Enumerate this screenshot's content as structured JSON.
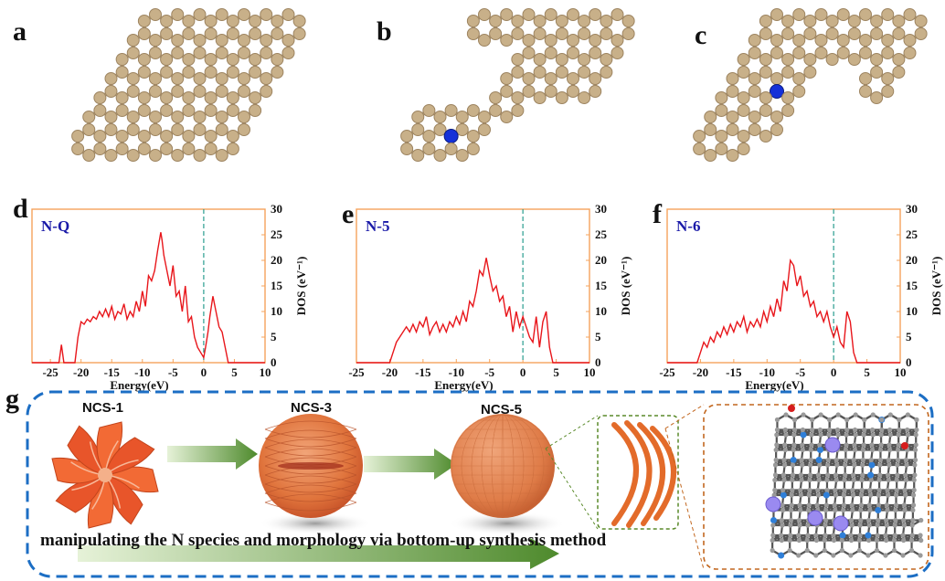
{
  "panels": {
    "a": "a",
    "b": "b",
    "c": "c",
    "d": "d",
    "e": "e",
    "f": "f",
    "g": "g"
  },
  "colors": {
    "carbon_atom": "#c8b089",
    "nitrogen_atom": "#1530d8",
    "dos_line": "#e8161b",
    "axes_frame": "#f4a35c",
    "fermi_line": "#2a9d8f",
    "dash_border": "#1c6ec4",
    "arrow_green": "#4e8a2c",
    "sphere_orange": "#e37a3b"
  },
  "chart_data": [
    {
      "type": "line",
      "title": "N-Q",
      "xlabel": "Energy(eV)",
      "ylabel": "DOS (eV⁻¹)",
      "xlim": [
        -28,
        10
      ],
      "ylim": [
        0,
        30
      ],
      "xticks": [
        -25,
        -20,
        -15,
        -10,
        -5,
        0,
        5,
        10
      ],
      "yticks": [
        0,
        5,
        10,
        15,
        20,
        25,
        30
      ],
      "fermi_level": 0,
      "series": [
        {
          "x": [
            -28,
            -23.6,
            -23.2,
            -22.8,
            -22.4,
            -21,
            -20.5,
            -20,
            -19.5,
            -19,
            -18.5,
            -18,
            -17.5,
            -17,
            -16.5,
            -16,
            -15.5,
            -15,
            -14.5,
            -14,
            -13.5,
            -13,
            -12.5,
            -12,
            -11.5,
            -11,
            -10.5,
            -10,
            -9.5,
            -9,
            -8.5,
            -8,
            -7.5,
            -7,
            -6.8,
            -6.5,
            -6,
            -5.5,
            -5,
            -4.5,
            -4,
            -3.5,
            -3,
            -2.5,
            -2,
            -1.5,
            -1,
            -0.5,
            0,
            0.3,
            0.7,
            1,
            1.5,
            2,
            2.5,
            3,
            3.5,
            4,
            4.5,
            10
          ],
          "y": [
            0,
            0,
            3.5,
            0,
            0,
            0,
            5,
            8,
            7.5,
            8.5,
            8,
            9,
            8.5,
            10,
            9,
            10.5,
            9,
            11,
            8.5,
            10,
            9.5,
            11.5,
            8.5,
            10,
            9,
            12,
            10,
            14,
            11,
            17,
            16,
            18,
            22,
            25.5,
            24,
            21,
            18,
            15,
            19,
            13,
            14,
            10,
            15,
            8,
            9,
            5,
            3,
            2,
            1,
            3,
            6,
            9,
            13,
            10,
            7,
            6,
            3,
            0,
            0,
            0
          ]
        }
      ]
    },
    {
      "type": "line",
      "title": "N-5",
      "xlabel": "Energy(eV)",
      "ylabel": "DOS (eV⁻¹)",
      "xlim": [
        -25,
        10
      ],
      "ylim": [
        0,
        30
      ],
      "xticks": [
        -25,
        -20,
        -15,
        -10,
        -5,
        0,
        5,
        10
      ],
      "yticks": [
        0,
        5,
        10,
        15,
        20,
        25,
        30
      ],
      "fermi_level": 0,
      "series": [
        {
          "x": [
            -25,
            -20,
            -19.5,
            -19,
            -18.5,
            -18,
            -17.5,
            -17,
            -16.5,
            -16,
            -15.5,
            -15,
            -14.5,
            -14,
            -13.5,
            -13,
            -12.5,
            -12,
            -11.5,
            -11,
            -10.5,
            -10,
            -9.5,
            -9,
            -8.5,
            -8,
            -7.5,
            -7,
            -6.5,
            -6,
            -5.5,
            -5,
            -4.5,
            -4,
            -3.5,
            -3,
            -2.5,
            -2,
            -1.5,
            -1,
            -0.5,
            0,
            0.5,
            1,
            1.5,
            2,
            2.5,
            3,
            3.5,
            4,
            4.5,
            10
          ],
          "y": [
            0,
            0,
            2,
            4,
            5,
            6,
            7,
            6,
            7.5,
            6,
            8,
            7,
            9,
            5.5,
            7,
            8,
            6,
            7.5,
            6,
            8,
            7,
            9,
            7.5,
            10,
            8,
            12,
            11,
            14,
            18,
            17,
            20.5,
            17,
            14,
            15,
            12,
            13,
            9,
            11,
            6,
            10,
            7,
            9,
            7,
            5,
            4,
            9,
            3,
            8,
            10,
            3,
            0,
            0
          ]
        }
      ]
    },
    {
      "type": "line",
      "title": "N-6",
      "xlabel": "Energy(eV)",
      "ylabel": "DOS (eV⁻¹)",
      "xlim": [
        -25,
        10
      ],
      "ylim": [
        0,
        30
      ],
      "xticks": [
        -25,
        -20,
        -15,
        -10,
        -5,
        0,
        5,
        10
      ],
      "yticks": [
        0,
        5,
        10,
        15,
        20,
        25,
        30
      ],
      "fermi_level": 0,
      "series": [
        {
          "x": [
            -25,
            -20.5,
            -20,
            -19.5,
            -19,
            -18.5,
            -18,
            -17.5,
            -17,
            -16.5,
            -16,
            -15.5,
            -15,
            -14.5,
            -14,
            -13.5,
            -13,
            -12.5,
            -12,
            -11.5,
            -11,
            -10.5,
            -10,
            -9.5,
            -9,
            -8.5,
            -8,
            -7.5,
            -7,
            -6.5,
            -6,
            -5.5,
            -5,
            -4.5,
            -4,
            -3.5,
            -3,
            -2.5,
            -2,
            -1.5,
            -1,
            -0.5,
            0,
            0.5,
            1,
            1.5,
            2,
            2.5,
            3,
            3.5,
            4,
            10
          ],
          "y": [
            0,
            0,
            2,
            4,
            3,
            5,
            4,
            6,
            5,
            7,
            5.5,
            7.5,
            6,
            8,
            7,
            9,
            6,
            8,
            7,
            8.5,
            7,
            10,
            8,
            11,
            9,
            12.5,
            10,
            16,
            14,
            20,
            19,
            15,
            17,
            13,
            14,
            11,
            12,
            9,
            10,
            8,
            10,
            7,
            5,
            7,
            4,
            3,
            10,
            8,
            2,
            0,
            0,
            0
          ]
        }
      ]
    }
  ],
  "schematic": {
    "stages": [
      "NCS-1",
      "NCS-3",
      "NCS-5"
    ],
    "caption": "manipulating the N species and morphology via bottom-up synthesis method"
  }
}
